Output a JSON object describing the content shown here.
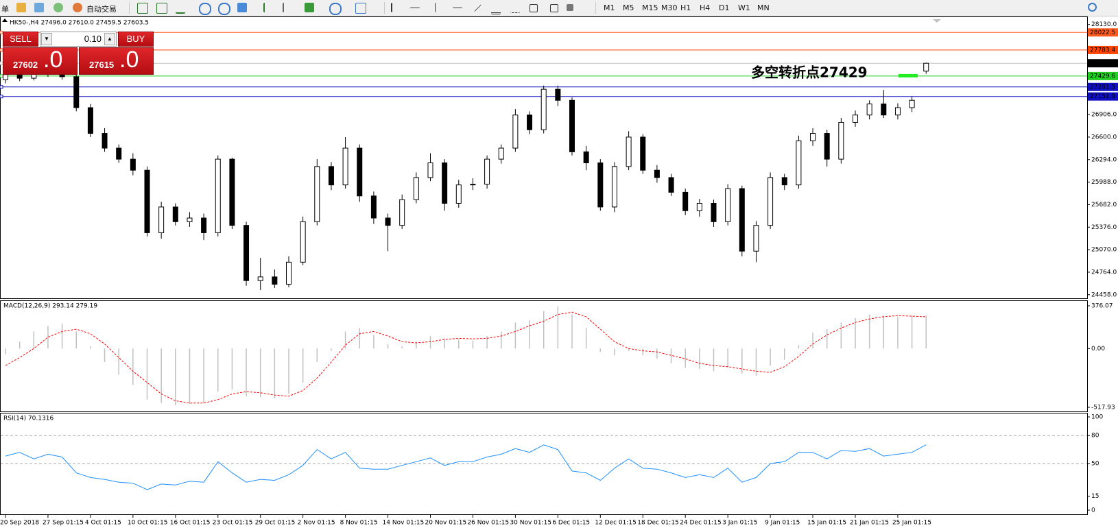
{
  "toolbar": {
    "menu": "单",
    "auto_trading": "自动交易",
    "timeframes": [
      "M1",
      "M5",
      "M15",
      "M30",
      "H1",
      "H4",
      "D1",
      "W1",
      "MN"
    ]
  },
  "trade_panel": {
    "sell_label": "SELL",
    "buy_label": "BUY",
    "lots": "0.10",
    "sell_price": "27602",
    "sell_frac": ".0",
    "buy_price": "27615",
    "buy_frac": ".0"
  },
  "chart_data": [
    {
      "type": "candlestick",
      "title": "HK50-,H4  27496.0 27610.0 27459.5 27603.5",
      "categories": [
        "20 Sep 2018",
        null,
        null,
        "27 Sep 01:15",
        null,
        null,
        "4 Oct 01:15",
        null,
        null,
        "10 Oct 01:15",
        null,
        null,
        "16 Oct 01:15",
        null,
        null,
        "23 Oct 01:15",
        null,
        null,
        "29 Oct 01:15",
        null,
        null,
        "2 Nov 01:15",
        null,
        null,
        "8 Nov 01:15",
        null,
        null,
        "14 Nov 01:15",
        null,
        null,
        "20 Nov 01:15",
        null,
        null,
        "26 Nov 01:15",
        null,
        null,
        "30 Nov 01:15",
        null,
        null,
        "6 Dec 01:15",
        null,
        null,
        "12 Dec 01:15",
        null,
        null,
        "18 Dec 01:15",
        null,
        null,
        "24 Dec 01:15",
        null,
        null,
        "3 Jan 01:15",
        null,
        null,
        "9 Jan 01:15",
        null,
        null,
        "15 Jan 01:15",
        null,
        null,
        "21 Jan 01:15",
        null,
        null,
        "25 Jan 01:15",
        null,
        null
      ],
      "ohlc": [
        [
          27380,
          27520,
          27330,
          27450
        ],
        [
          27450,
          27500,
          27360,
          27400
        ],
        [
          27400,
          27560,
          27370,
          27500
        ],
        [
          27500,
          27550,
          27420,
          27480
        ],
        [
          27480,
          27520,
          27380,
          27420
        ],
        [
          27420,
          27460,
          26950,
          27000
        ],
        [
          27000,
          27050,
          26600,
          26650
        ],
        [
          26650,
          26720,
          26400,
          26450
        ],
        [
          26450,
          26500,
          26250,
          26300
        ],
        [
          26300,
          26380,
          26080,
          26150
        ],
        [
          26150,
          26200,
          25250,
          25300
        ],
        [
          25300,
          25720,
          25220,
          25650
        ],
        [
          25650,
          25700,
          25400,
          25450
        ],
        [
          25450,
          25580,
          25380,
          25500
        ],
        [
          25500,
          25560,
          25200,
          25300
        ],
        [
          25300,
          26350,
          25250,
          26300
        ],
        [
          26300,
          26320,
          25350,
          25400
        ],
        [
          25400,
          25450,
          24580,
          24650
        ],
        [
          24650,
          24960,
          24520,
          24700
        ],
        [
          24700,
          24800,
          24550,
          24600
        ],
        [
          24600,
          24980,
          24560,
          24900
        ],
        [
          24900,
          25520,
          24860,
          25450
        ],
        [
          25450,
          26300,
          25400,
          26200
        ],
        [
          26200,
          26260,
          25880,
          25950
        ],
        [
          25950,
          26600,
          25900,
          26450
        ],
        [
          26450,
          26500,
          25720,
          25800
        ],
        [
          25800,
          25860,
          25420,
          25500
        ],
        [
          25500,
          25560,
          25050,
          25400
        ],
        [
          25400,
          25820,
          25350,
          25750
        ],
        [
          25750,
          26120,
          25700,
          26050
        ],
        [
          26050,
          26380,
          26000,
          26250
        ],
        [
          26250,
          26300,
          25600,
          25700
        ],
        [
          25700,
          26020,
          25640,
          25950
        ],
        [
          25950,
          26040,
          25880,
          25960
        ],
        [
          25960,
          26350,
          25900,
          26300
        ],
        [
          26300,
          26500,
          26240,
          26450
        ],
        [
          26450,
          26980,
          26400,
          26900
        ],
        [
          26900,
          26950,
          26640,
          26700
        ],
        [
          26700,
          27300,
          26650,
          27250
        ],
        [
          27250,
          27300,
          27020,
          27100
        ],
        [
          27100,
          27140,
          26350,
          26400
        ],
        [
          26400,
          26480,
          26150,
          26250
        ],
        [
          26250,
          26300,
          25600,
          25650
        ],
        [
          25650,
          26260,
          25580,
          26200
        ],
        [
          26200,
          26680,
          26150,
          26600
        ],
        [
          26600,
          26640,
          26100,
          26150
        ],
        [
          26150,
          26220,
          25980,
          26050
        ],
        [
          26050,
          26100,
          25800,
          25850
        ],
        [
          25850,
          25900,
          25540,
          25600
        ],
        [
          25600,
          25760,
          25520,
          25700
        ],
        [
          25700,
          25750,
          25380,
          25450
        ],
        [
          25450,
          25960,
          25400,
          25900
        ],
        [
          25900,
          25940,
          24980,
          25050
        ],
        [
          25050,
          25460,
          24900,
          25400
        ],
        [
          25400,
          26120,
          25350,
          26050
        ],
        [
          26050,
          26100,
          25880,
          25950
        ],
        [
          25950,
          26620,
          25900,
          26550
        ],
        [
          26550,
          26720,
          26480,
          26650
        ],
        [
          26650,
          26700,
          26200,
          26300
        ],
        [
          26300,
          26860,
          26240,
          26800
        ],
        [
          26800,
          26960,
          26740,
          26900
        ],
        [
          26900,
          27100,
          26840,
          27050
        ],
        [
          27050,
          27240,
          26860,
          26900
        ],
        [
          26900,
          27060,
          26840,
          27000
        ],
        [
          27000,
          27150,
          26940,
          27100
        ],
        [
          27496,
          27610,
          27459.5,
          27603.5
        ]
      ],
      "ylim": [
        24400,
        28230
      ],
      "yticks": [
        {
          "value": 28130,
          "label": "28130.0"
        },
        {
          "value": 26906,
          "label": "26906.0"
        },
        {
          "value": 26600,
          "label": "26600.0"
        },
        {
          "value": 26294,
          "label": "26294.0"
        },
        {
          "value": 25988,
          "label": "25988.0"
        },
        {
          "value": 25682,
          "label": "25682.0"
        },
        {
          "value": 25376,
          "label": "25376.0"
        },
        {
          "value": 25070,
          "label": "25070.0"
        },
        {
          "value": 24764,
          "label": "24764.0"
        },
        {
          "value": 24458,
          "label": "24458.0"
        }
      ],
      "levels": [
        {
          "value": 28022.5,
          "color": "#ff5a1f",
          "label_bg": "#ff5a1f"
        },
        {
          "value": 27783.4,
          "color": "#ff4500",
          "label_bg": "#ff4500"
        },
        {
          "value": 27603.5,
          "color": "#c0c0c0",
          "label_bg": "#000000"
        },
        {
          "value": 27429.6,
          "color": "#22cc22",
          "label_bg": "#22cc22"
        },
        {
          "value": 27281.5,
          "color": "#1010c0",
          "label_bg": "#1010c0"
        },
        {
          "value": 27151.9,
          "color": "#1010c0",
          "label_bg": "#1010c0"
        }
      ],
      "annotation": "多空转折点27429",
      "annotation_color": "#22ee22"
    },
    {
      "type": "macd",
      "title": "MACD(12,26,9) 293.14 279.19",
      "values": [
        -50,
        60,
        150,
        200,
        220,
        150,
        20,
        -120,
        -230,
        -320,
        -450,
        -480,
        -500,
        -490,
        -480,
        -380,
        -360,
        -420,
        -430,
        -440,
        -400,
        -300,
        -120,
        -20,
        150,
        180,
        120,
        40,
        20,
        60,
        110,
        90,
        80,
        70,
        110,
        150,
        230,
        250,
        330,
        370,
        300,
        180,
        -30,
        -60,
        -20,
        -60,
        -90,
        -130,
        -170,
        -180,
        -200,
        -170,
        -220,
        -240,
        -150,
        -100,
        30,
        140,
        170,
        230,
        270,
        300,
        290,
        280,
        290,
        293.14
      ],
      "signal": [
        -150,
        -80,
        0,
        100,
        150,
        170,
        130,
        40,
        -80,
        -200,
        -300,
        -400,
        -460,
        -480,
        -480,
        -450,
        -400,
        -380,
        -390,
        -410,
        -420,
        -370,
        -260,
        -120,
        30,
        130,
        150,
        110,
        60,
        50,
        60,
        80,
        90,
        85,
        90,
        110,
        150,
        200,
        240,
        300,
        320,
        280,
        170,
        60,
        0,
        -20,
        -30,
        -60,
        -90,
        -130,
        -150,
        -160,
        -180,
        -200,
        -210,
        -160,
        -70,
        40,
        120,
        180,
        230,
        260,
        280,
        290,
        285,
        279.19
      ],
      "color": "#c0c0c0",
      "signal_color": "#ff0000",
      "ylim": [
        -517.93,
        376.07
      ],
      "yticks": [
        376.07,
        {
          "value": 0,
          "label": "0.00"
        },
        -517.93
      ]
    },
    {
      "type": "line",
      "title": "RSI(14) 70.1316",
      "values": [
        58,
        62,
        55,
        60,
        57,
        40,
        35,
        33,
        30,
        29,
        22,
        28,
        27,
        31,
        30,
        52,
        40,
        30,
        33,
        32,
        38,
        48,
        65,
        55,
        62,
        45,
        44,
        44,
        48,
        52,
        56,
        48,
        52,
        52,
        57,
        60,
        66,
        62,
        70,
        65,
        42,
        40,
        32,
        45,
        55,
        45,
        44,
        40,
        35,
        38,
        35,
        45,
        30,
        35,
        50,
        52,
        62,
        62,
        55,
        64,
        63,
        66,
        58,
        60,
        62,
        70.1316
      ],
      "color": "#1e90ff",
      "ylim": [
        0,
        100
      ],
      "yticks": [
        100,
        80,
        50,
        15,
        0
      ],
      "dashed_levels": [
        80,
        50
      ]
    }
  ]
}
